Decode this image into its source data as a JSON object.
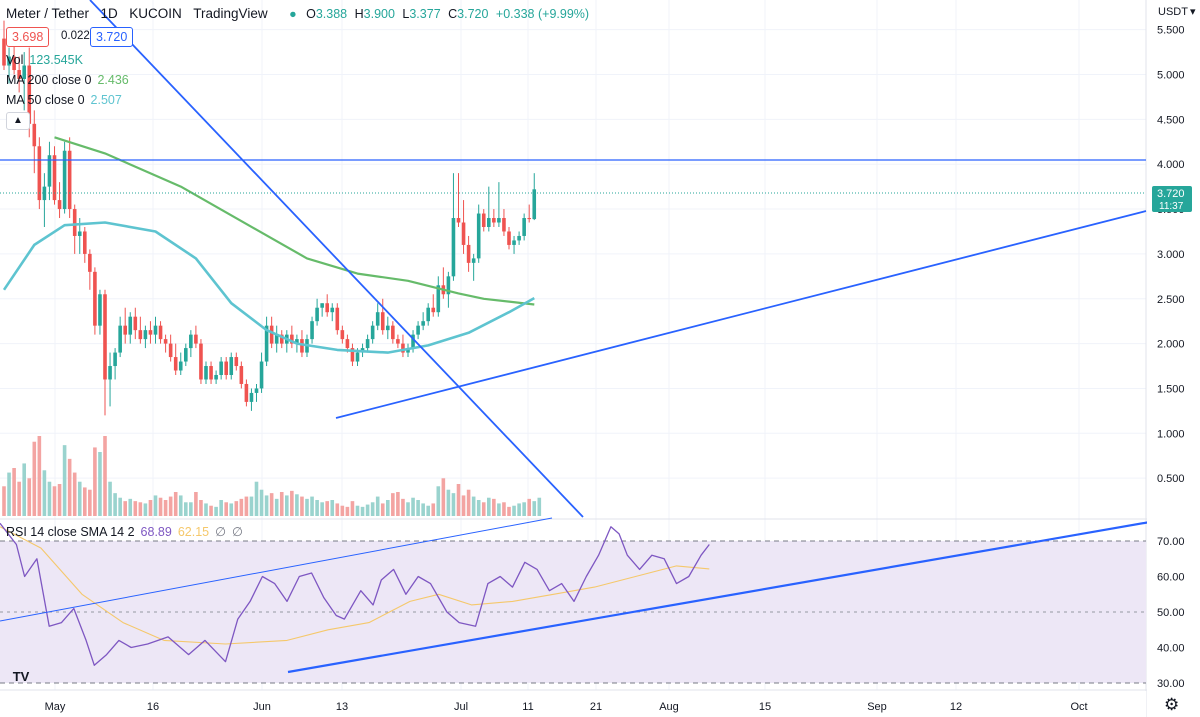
{
  "header": {
    "symbol": "Meter / Tether",
    "interval": "1D",
    "exchange": "KUCOIN",
    "source": "TradingView",
    "o_key": "O",
    "o": "3.388",
    "h_key": "H",
    "h": "3.900",
    "l_key": "L",
    "l": "3.377",
    "c_key": "C",
    "c": "3.720",
    "change": "+0.338 (+9.99%)"
  },
  "quote": {
    "sell": "3.698",
    "spread": "0.022",
    "buy": "3.720"
  },
  "indicators": {
    "vol_label": "Vol",
    "vol_value": "123.545K",
    "ma200_label": "MA 200 close 0",
    "ma200_value": "2.436",
    "ma50_label": "MA 50 close 0",
    "ma50_value": "2.507",
    "collapse_icon": "chevron-up-icon",
    "rsi_label": "RSI 14 close SMA 14 2",
    "rsi_value": "68.89",
    "rsi_sma_value": "62.15",
    "rsi_extra1": "∅",
    "rsi_extra2": "∅"
  },
  "price_axis": {
    "currency": "USDT",
    "ticks": [
      "5.500",
      "5.000",
      "4.500",
      "4.000",
      "3.500",
      "3.000",
      "2.500",
      "2.000",
      "1.500",
      "1.000",
      "0.500"
    ],
    "last_price": "3.720",
    "countdown": "11:37"
  },
  "rsi_axis": {
    "ticks": [
      "70.00",
      "60.00",
      "50.00",
      "40.00",
      "30.00"
    ]
  },
  "time_axis": {
    "labels": [
      "May",
      "16",
      "Jun",
      "13",
      "Jul",
      "11",
      "21",
      "Aug",
      "15",
      "Sep",
      "12",
      "Oct"
    ]
  },
  "colors": {
    "up": "#26a69a",
    "down": "#ef5350",
    "ma200": "#66bb6a",
    "ma50": "#5ec4d0",
    "trendline": "#2962ff",
    "rsi": "#7e57c2",
    "rsi_sma": "#f5c86b",
    "rsi_band": "#ede7f6"
  },
  "icons": {
    "logo": "tradingview-logo-icon",
    "settings": "gear-icon"
  },
  "chart_data": {
    "type": "candlestick",
    "title": "Meter / Tether, 1D, KUCOIN",
    "ylabel": "USDT",
    "ylim": [
      0.3,
      5.7
    ],
    "candles": [
      [
        5.4,
        5.6,
        5.05,
        5.1
      ],
      [
        5.1,
        5.3,
        4.9,
        5.2
      ],
      [
        5.2,
        5.45,
        5.0,
        5.05
      ],
      [
        5.05,
        5.2,
        4.8,
        4.95
      ],
      [
        4.95,
        5.25,
        4.6,
        5.1
      ],
      [
        5.1,
        5.3,
        4.3,
        4.45
      ],
      [
        4.45,
        4.6,
        3.9,
        4.2
      ],
      [
        4.2,
        4.3,
        3.5,
        3.6
      ],
      [
        3.6,
        3.9,
        3.3,
        3.75
      ],
      [
        3.75,
        4.25,
        3.6,
        4.1
      ],
      [
        4.1,
        4.2,
        3.55,
        3.6
      ],
      [
        3.6,
        3.8,
        3.4,
        3.5
      ],
      [
        3.5,
        4.25,
        3.45,
        4.15
      ],
      [
        4.15,
        4.3,
        3.4,
        3.5
      ],
      [
        3.5,
        3.55,
        3.0,
        3.2
      ],
      [
        3.2,
        3.4,
        3.0,
        3.25
      ],
      [
        3.25,
        3.3,
        2.9,
        3.0
      ],
      [
        3.0,
        3.05,
        2.6,
        2.8
      ],
      [
        2.8,
        2.85,
        2.1,
        2.2
      ],
      [
        2.2,
        2.6,
        2.1,
        2.55
      ],
      [
        2.55,
        2.6,
        1.2,
        1.6
      ],
      [
        1.6,
        1.9,
        1.3,
        1.75
      ],
      [
        1.75,
        1.95,
        1.6,
        1.9
      ],
      [
        1.9,
        2.3,
        1.85,
        2.2
      ],
      [
        2.2,
        2.4,
        2.0,
        2.1
      ],
      [
        2.1,
        2.35,
        2.0,
        2.3
      ],
      [
        2.3,
        2.4,
        2.05,
        2.15
      ],
      [
        2.15,
        2.3,
        2.0,
        2.05
      ],
      [
        2.05,
        2.2,
        1.95,
        2.15
      ],
      [
        2.15,
        2.25,
        2.0,
        2.1
      ],
      [
        2.1,
        2.3,
        2.0,
        2.2
      ],
      [
        2.2,
        2.25,
        2.0,
        2.05
      ],
      [
        2.05,
        2.1,
        1.9,
        2.0
      ],
      [
        2.0,
        2.1,
        1.8,
        1.85
      ],
      [
        1.85,
        2.0,
        1.65,
        1.7
      ],
      [
        1.7,
        1.9,
        1.65,
        1.8
      ],
      [
        1.8,
        2.0,
        1.75,
        1.95
      ],
      [
        1.95,
        2.15,
        1.85,
        2.1
      ],
      [
        2.1,
        2.2,
        1.95,
        2.0
      ],
      [
        2.0,
        2.05,
        1.55,
        1.6
      ],
      [
        1.6,
        1.8,
        1.55,
        1.75
      ],
      [
        1.75,
        1.8,
        1.55,
        1.6
      ],
      [
        1.6,
        1.7,
        1.55,
        1.65
      ],
      [
        1.65,
        1.85,
        1.6,
        1.8
      ],
      [
        1.8,
        1.85,
        1.6,
        1.65
      ],
      [
        1.65,
        1.9,
        1.6,
        1.85
      ],
      [
        1.85,
        1.9,
        1.7,
        1.75
      ],
      [
        1.75,
        1.8,
        1.5,
        1.55
      ],
      [
        1.55,
        1.6,
        1.3,
        1.35
      ],
      [
        1.35,
        1.5,
        1.25,
        1.45
      ],
      [
        1.45,
        1.55,
        1.35,
        1.5
      ],
      [
        1.5,
        1.9,
        1.45,
        1.8
      ],
      [
        1.8,
        2.3,
        1.75,
        2.2
      ],
      [
        2.2,
        2.3,
        1.95,
        2.0
      ],
      [
        2.0,
        2.2,
        1.9,
        2.1
      ],
      [
        2.1,
        2.15,
        1.95,
        2.0
      ],
      [
        2.0,
        2.15,
        1.9,
        2.1
      ],
      [
        2.1,
        2.2,
        1.95,
        2.0
      ],
      [
        2.0,
        2.1,
        1.9,
        2.05
      ],
      [
        2.05,
        2.15,
        1.85,
        1.9
      ],
      [
        1.9,
        2.1,
        1.85,
        2.05
      ],
      [
        2.05,
        2.3,
        2.0,
        2.25
      ],
      [
        2.25,
        2.5,
        2.2,
        2.4
      ],
      [
        2.4,
        2.45,
        2.3,
        2.45
      ],
      [
        2.45,
        2.55,
        2.3,
        2.35
      ],
      [
        2.35,
        2.45,
        2.25,
        2.4
      ],
      [
        2.4,
        2.45,
        2.1,
        2.15
      ],
      [
        2.15,
        2.2,
        2.0,
        2.05
      ],
      [
        2.05,
        2.1,
        1.9,
        1.95
      ],
      [
        1.95,
        2.0,
        1.75,
        1.8
      ],
      [
        1.8,
        1.95,
        1.75,
        1.9
      ],
      [
        1.9,
        2.0,
        1.85,
        1.95
      ],
      [
        1.95,
        2.1,
        1.9,
        2.05
      ],
      [
        2.05,
        2.25,
        2.0,
        2.2
      ],
      [
        2.2,
        2.45,
        2.15,
        2.35
      ],
      [
        2.35,
        2.5,
        2.1,
        2.15
      ],
      [
        2.15,
        2.3,
        2.05,
        2.2
      ],
      [
        2.2,
        2.25,
        2.0,
        2.05
      ],
      [
        2.05,
        2.1,
        1.95,
        2.0
      ],
      [
        2.0,
        2.1,
        1.85,
        1.9
      ],
      [
        1.9,
        2.0,
        1.85,
        1.95
      ],
      [
        1.95,
        2.15,
        1.9,
        2.1
      ],
      [
        2.1,
        2.25,
        2.05,
        2.2
      ],
      [
        2.2,
        2.35,
        2.15,
        2.25
      ],
      [
        2.25,
        2.45,
        2.2,
        2.4
      ],
      [
        2.4,
        2.55,
        2.3,
        2.35
      ],
      [
        2.35,
        2.75,
        2.3,
        2.65
      ],
      [
        2.65,
        2.85,
        2.5,
        2.55
      ],
      [
        2.55,
        2.8,
        2.4,
        2.75
      ],
      [
        2.75,
        3.9,
        2.7,
        3.4
      ],
      [
        3.4,
        3.9,
        3.3,
        3.35
      ],
      [
        3.35,
        3.6,
        3.0,
        3.1
      ],
      [
        3.1,
        3.2,
        2.8,
        2.9
      ],
      [
        2.9,
        3.0,
        2.7,
        2.95
      ],
      [
        2.95,
        3.55,
        2.9,
        3.45
      ],
      [
        3.45,
        3.5,
        3.25,
        3.3
      ],
      [
        3.3,
        3.75,
        3.25,
        3.4
      ],
      [
        3.4,
        3.5,
        3.3,
        3.35
      ],
      [
        3.35,
        3.8,
        3.3,
        3.4
      ],
      [
        3.4,
        3.5,
        3.2,
        3.25
      ],
      [
        3.25,
        3.3,
        3.05,
        3.1
      ],
      [
        3.1,
        3.2,
        3.0,
        3.15
      ],
      [
        3.15,
        3.25,
        3.1,
        3.2
      ],
      [
        3.2,
        3.45,
        3.15,
        3.4
      ],
      [
        3.4,
        3.55,
        3.35,
        3.388
      ],
      [
        3.388,
        3.9,
        3.377,
        3.72
      ]
    ],
    "volume": [
      260,
      380,
      420,
      300,
      460,
      330,
      650,
      700,
      400,
      300,
      260,
      280,
      620,
      500,
      380,
      300,
      250,
      230,
      600,
      560,
      700,
      300,
      200,
      160,
      130,
      150,
      130,
      120,
      110,
      140,
      180,
      160,
      140,
      170,
      210,
      180,
      120,
      120,
      210,
      140,
      110,
      90,
      80,
      140,
      120,
      110,
      130,
      150,
      170,
      170,
      300,
      230,
      180,
      200,
      150,
      210,
      180,
      220,
      190,
      170,
      150,
      170,
      140,
      120,
      130,
      140,
      110,
      90,
      80,
      130,
      90,
      80,
      100,
      120,
      170,
      110,
      140,
      200,
      210,
      150,
      120,
      160,
      140,
      110,
      90,
      110,
      260,
      330,
      230,
      200,
      280,
      180,
      230,
      170,
      140,
      120,
      160,
      150,
      110,
      120,
      80,
      90,
      110,
      120,
      150,
      130,
      160
    ],
    "ma200": [
      [
        10,
        4.3
      ],
      [
        20,
        4.12
      ],
      [
        35,
        3.75
      ],
      [
        50,
        3.27
      ],
      [
        60,
        2.95
      ],
      [
        70,
        2.78
      ],
      [
        80,
        2.7
      ],
      [
        90,
        2.56
      ],
      [
        95,
        2.5
      ],
      [
        105,
        2.436
      ]
    ],
    "ma50": [
      [
        0,
        2.6
      ],
      [
        6,
        3.1
      ],
      [
        12,
        3.32
      ],
      [
        20,
        3.35
      ],
      [
        30,
        3.25
      ],
      [
        38,
        2.95
      ],
      [
        45,
        2.45
      ],
      [
        52,
        2.15
      ],
      [
        58,
        2.0
      ],
      [
        66,
        1.93
      ],
      [
        76,
        1.9
      ],
      [
        84,
        1.98
      ],
      [
        92,
        2.12
      ],
      [
        100,
        2.35
      ],
      [
        105,
        2.507
      ]
    ],
    "rsi": {
      "ylim": [
        28,
        76
      ],
      "upper_band": 70,
      "lower_band": 30,
      "rsi": [
        [
          0,
          75
        ],
        [
          4,
          69
        ],
        [
          6,
          60
        ],
        [
          9,
          65
        ],
        [
          12,
          46
        ],
        [
          15,
          47
        ],
        [
          18,
          51
        ],
        [
          21,
          42
        ],
        [
          23,
          35
        ],
        [
          26,
          38
        ],
        [
          29,
          42
        ],
        [
          32,
          40
        ],
        [
          36,
          41
        ],
        [
          41,
          43
        ],
        [
          46,
          38
        ],
        [
          50,
          42
        ],
        [
          55,
          36
        ],
        [
          58,
          48
        ],
        [
          61,
          53
        ],
        [
          64,
          60
        ],
        [
          67,
          58
        ],
        [
          70,
          53
        ],
        [
          73,
          60
        ],
        [
          76,
          61
        ],
        [
          79,
          54
        ],
        [
          82,
          49
        ],
        [
          84,
          48
        ],
        [
          88,
          56
        ],
        [
          91,
          52
        ],
        [
          93,
          59
        ],
        [
          96,
          62
        ],
        [
          99,
          55
        ],
        [
          102,
          60
        ],
        [
          105,
          58
        ],
        [
          109,
          50
        ],
        [
          112,
          47
        ],
        [
          116,
          46
        ],
        [
          119,
          58
        ],
        [
          122,
          60
        ],
        [
          125,
          57
        ],
        [
          128,
          64
        ],
        [
          131,
          62
        ],
        [
          134,
          56
        ],
        [
          137,
          58
        ],
        [
          140,
          53
        ],
        [
          143,
          60
        ],
        [
          146,
          66
        ],
        [
          149,
          74
        ],
        [
          151,
          72
        ],
        [
          153,
          66
        ],
        [
          156,
          62
        ],
        [
          159,
          66
        ],
        [
          162,
          65
        ],
        [
          165,
          58
        ],
        [
          168,
          60
        ],
        [
          171,
          66
        ],
        [
          173,
          69
        ]
      ],
      "sma": [
        [
          0,
          74
        ],
        [
          10,
          68
        ],
        [
          20,
          55
        ],
        [
          30,
          47
        ],
        [
          40,
          42
        ],
        [
          55,
          41
        ],
        [
          70,
          42
        ],
        [
          80,
          45
        ],
        [
          90,
          47
        ],
        [
          100,
          53
        ],
        [
          107,
          55
        ],
        [
          115,
          52
        ],
        [
          125,
          53
        ],
        [
          135,
          55
        ],
        [
          145,
          57
        ],
        [
          155,
          60
        ],
        [
          165,
          63
        ],
        [
          173,
          62.15
        ]
      ]
    }
  }
}
